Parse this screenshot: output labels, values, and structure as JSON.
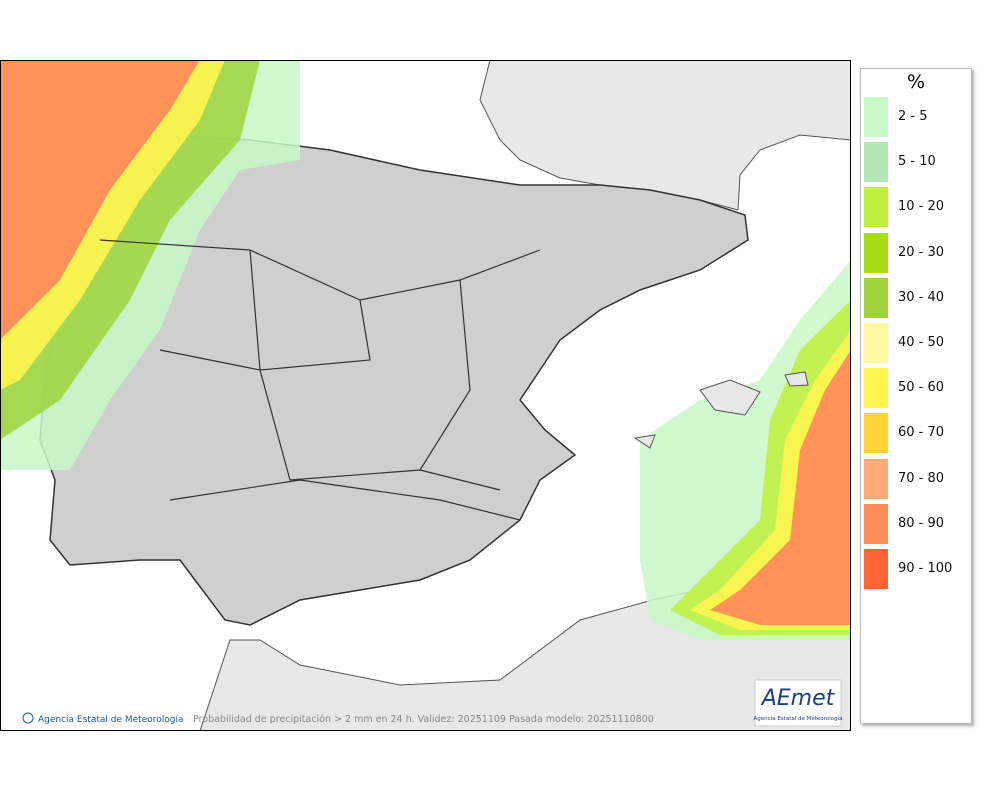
{
  "map": {
    "caption": "Probabilidad de precipitación > 2 mm en 24 h. Validez: 20251109 Pasada modelo: 20251110800",
    "credit": "Agencia Estatal de Meteorología",
    "logo": {
      "text": "AEmet",
      "subtitle": "Agencia Estatal de Meteorología"
    }
  },
  "legend": {
    "title": "%",
    "items": [
      {
        "label": "2 - 5",
        "color": "#c8f8c8"
      },
      {
        "label": "5 - 10",
        "color": "#b4e6b4"
      },
      {
        "label": "10 - 20",
        "color": "#c0f03c"
      },
      {
        "label": "20 - 30",
        "color": "#a8dc14"
      },
      {
        "label": "30 - 40",
        "color": "#a0d23c"
      },
      {
        "label": "40 - 50",
        "color": "#fffaa0"
      },
      {
        "label": "50 - 60",
        "color": "#fff550"
      },
      {
        "label": "60 - 70",
        "color": "#ffd23c"
      },
      {
        "label": "70 - 80",
        "color": "#ffaa78"
      },
      {
        "label": "80 - 90",
        "color": "#ff8c5a"
      },
      {
        "label": "90 - 100",
        "color": "#ff6432"
      }
    ]
  }
}
